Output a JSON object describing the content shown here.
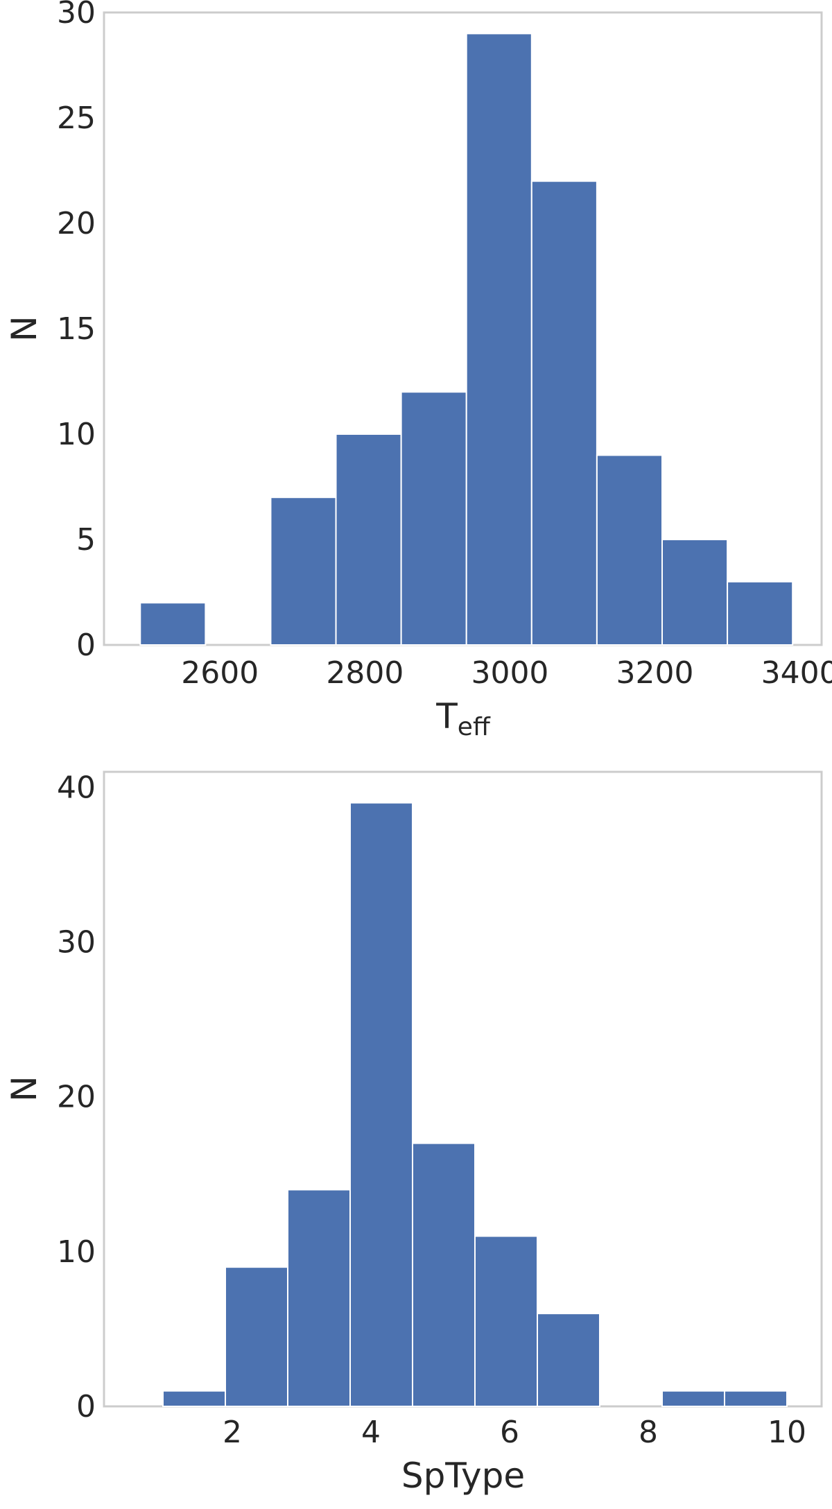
{
  "chart_data": [
    {
      "type": "bar",
      "subtype": "histogram",
      "xlabel": "T",
      "xlabel_subscript": "eff",
      "ylabel": "N",
      "xlim": [
        2440,
        3430
      ],
      "ylim": [
        0,
        30
      ],
      "xticks": [
        2600,
        2800,
        3000,
        3200,
        3400
      ],
      "yticks": [
        0,
        5,
        10,
        15,
        20,
        25,
        30
      ],
      "bin_edges": [
        2490,
        2580,
        2670,
        2760,
        2850,
        2940,
        3030,
        3120,
        3210,
        3300,
        3390
      ],
      "values": [
        2,
        0,
        7,
        10,
        12,
        29,
        22,
        9,
        5,
        3
      ],
      "color": "#4c72b0",
      "grid": false
    },
    {
      "type": "bar",
      "subtype": "histogram",
      "xlabel": "SpType",
      "ylabel": "N",
      "xlim": [
        0.15,
        10.5
      ],
      "ylim": [
        0,
        41
      ],
      "xticks": [
        2,
        4,
        6,
        8,
        10
      ],
      "yticks": [
        0,
        10,
        20,
        30,
        40
      ],
      "bin_edges": [
        1,
        1.9,
        2.8,
        3.7,
        4.6,
        5.5,
        6.4,
        7.3,
        8.2,
        9.1,
        10
      ],
      "values": [
        1,
        9,
        14,
        39,
        17,
        11,
        6,
        0,
        1,
        1
      ],
      "color": "#4c72b0",
      "grid": false
    }
  ]
}
